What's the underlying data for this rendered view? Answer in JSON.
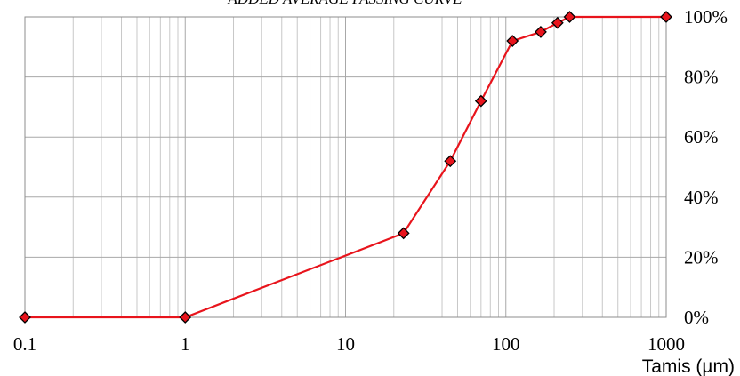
{
  "chart_data": {
    "type": "line",
    "title": "ADDED AVERAGE PASSING CURVE",
    "xlabel": "Tamis (µm)",
    "ylabel": "",
    "x_scale": "log",
    "xlim": [
      0.1,
      1000
    ],
    "ylim": [
      0,
      100
    ],
    "x_ticks": [
      {
        "value": 0.1,
        "label": "0.1"
      },
      {
        "value": 1,
        "label": "1"
      },
      {
        "value": 10,
        "label": "10"
      },
      {
        "value": 100,
        "label": "100"
      },
      {
        "value": 1000,
        "label": "1000"
      }
    ],
    "y_ticks": [
      {
        "value": 0,
        "label": "0%"
      },
      {
        "value": 20,
        "label": "20%"
      },
      {
        "value": 40,
        "label": "40%"
      },
      {
        "value": 60,
        "label": "60%"
      },
      {
        "value": 80,
        "label": "80%"
      },
      {
        "value": 100,
        "label": "100%"
      }
    ],
    "y_axis_side": "right",
    "grid": true,
    "legend": "none",
    "series": [
      {
        "x": [
          0.1,
          1,
          23,
          45,
          70,
          110,
          165,
          210,
          250,
          1000
        ],
        "y": [
          0,
          0,
          28,
          52,
          72,
          92,
          95,
          98,
          100,
          100
        ],
        "line_color": "#e8141c",
        "marker": "diamond",
        "marker_color": "#e8141c"
      }
    ]
  }
}
